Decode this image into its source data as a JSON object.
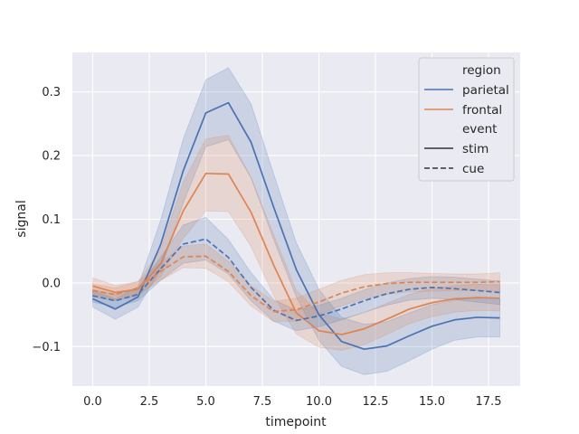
{
  "chart_data": {
    "type": "line",
    "title": "",
    "xlabel": "timepoint",
    "ylabel": "signal",
    "xlim": [
      -0.9,
      18.9
    ],
    "ylim": [
      -0.162,
      0.362
    ],
    "grid": true,
    "legend_placement": "top-right",
    "x_ticks": [
      {
        "value": 0,
        "label": "0.0"
      },
      {
        "value": 2.5,
        "label": "2.5"
      },
      {
        "value": 5,
        "label": "5.0"
      },
      {
        "value": 7.5,
        "label": "7.5"
      },
      {
        "value": 10,
        "label": "10.0"
      },
      {
        "value": 12.5,
        "label": "12.5"
      },
      {
        "value": 15,
        "label": "15.0"
      },
      {
        "value": 17.5,
        "label": "17.5"
      }
    ],
    "y_ticks": [
      {
        "value": -0.1,
        "label": "−0.1"
      },
      {
        "value": 0.0,
        "label": "0.0"
      },
      {
        "value": 0.1,
        "label": "0.1"
      },
      {
        "value": 0.2,
        "label": "0.2"
      },
      {
        "value": 0.3,
        "label": "0.3"
      }
    ],
    "x": [
      0,
      1,
      2,
      3,
      4,
      5,
      6,
      7,
      8,
      9,
      10,
      11,
      12,
      13,
      14,
      15,
      16,
      17,
      18
    ],
    "series": [
      {
        "region": "parietal",
        "event": "stim",
        "color": "#4c72b0",
        "dash": "solid",
        "values": [
          -0.025,
          -0.041,
          -0.022,
          0.06,
          0.176,
          0.267,
          0.283,
          0.221,
          0.119,
          0.021,
          -0.05,
          -0.092,
          -0.104,
          -0.099,
          -0.083,
          -0.068,
          -0.058,
          -0.054,
          -0.055
        ],
        "ci_low": [
          -0.038,
          -0.057,
          -0.038,
          0.021,
          0.125,
          0.214,
          0.225,
          0.165,
          0.068,
          -0.022,
          -0.09,
          -0.131,
          -0.144,
          -0.139,
          -0.122,
          -0.104,
          -0.09,
          -0.085,
          -0.085
        ],
        "ci_high": [
          -0.012,
          -0.025,
          -0.006,
          0.098,
          0.226,
          0.319,
          0.338,
          0.281,
          0.171,
          0.063,
          -0.01,
          -0.054,
          -0.065,
          -0.061,
          -0.047,
          -0.034,
          -0.027,
          -0.023,
          -0.025
        ]
      },
      {
        "region": "frontal",
        "event": "stim",
        "color": "#dd8452",
        "dash": "solid",
        "values": [
          -0.005,
          -0.015,
          -0.01,
          0.03,
          0.113,
          0.172,
          0.171,
          0.111,
          0.028,
          -0.047,
          -0.075,
          -0.081,
          -0.072,
          -0.057,
          -0.041,
          -0.031,
          -0.025,
          -0.023,
          -0.024
        ],
        "ci_low": [
          -0.017,
          -0.026,
          -0.022,
          0.01,
          0.07,
          0.113,
          0.112,
          0.057,
          -0.02,
          -0.08,
          -0.101,
          -0.106,
          -0.097,
          -0.081,
          -0.064,
          -0.053,
          -0.046,
          -0.043,
          -0.044
        ],
        "ci_high": [
          0.008,
          -0.004,
          0.002,
          0.052,
          0.158,
          0.226,
          0.232,
          0.166,
          0.076,
          -0.012,
          -0.047,
          -0.057,
          -0.047,
          -0.032,
          -0.018,
          -0.009,
          -0.004,
          -0.002,
          -0.003
        ]
      },
      {
        "region": "parietal",
        "event": "cue",
        "color": "#4c72b0",
        "dash": "dashed",
        "values": [
          -0.02,
          -0.028,
          -0.018,
          0.022,
          0.061,
          0.069,
          0.04,
          -0.007,
          -0.043,
          -0.059,
          -0.052,
          -0.041,
          -0.028,
          -0.017,
          -0.01,
          -0.007,
          -0.009,
          -0.012,
          -0.015
        ],
        "ci_low": [
          -0.03,
          -0.038,
          -0.028,
          0.004,
          0.031,
          0.036,
          0.014,
          -0.028,
          -0.06,
          -0.075,
          -0.069,
          -0.058,
          -0.046,
          -0.035,
          -0.027,
          -0.024,
          -0.026,
          -0.03,
          -0.034
        ],
        "ci_high": [
          -0.01,
          -0.018,
          -0.008,
          0.04,
          0.091,
          0.103,
          0.068,
          0.016,
          -0.026,
          -0.043,
          -0.035,
          -0.024,
          -0.011,
          0.0,
          0.007,
          0.01,
          0.009,
          0.006,
          0.003
        ]
      },
      {
        "region": "frontal",
        "event": "cue",
        "color": "#dd8452",
        "dash": "dashed",
        "values": [
          -0.012,
          -0.018,
          -0.008,
          0.018,
          0.041,
          0.042,
          0.018,
          -0.02,
          -0.045,
          -0.042,
          -0.03,
          -0.016,
          -0.006,
          -0.001,
          0.001,
          0.001,
          0.001,
          0.001,
          0.002
        ],
        "ci_low": [
          -0.022,
          -0.028,
          -0.018,
          0.004,
          0.024,
          0.023,
          0.002,
          -0.036,
          -0.061,
          -0.06,
          -0.05,
          -0.036,
          -0.025,
          -0.018,
          -0.014,
          -0.013,
          -0.012,
          -0.012,
          -0.012
        ],
        "ci_high": [
          -0.002,
          -0.008,
          0.002,
          0.032,
          0.058,
          0.061,
          0.034,
          -0.004,
          -0.029,
          -0.024,
          -0.01,
          0.004,
          0.013,
          0.016,
          0.016,
          0.015,
          0.014,
          0.014,
          0.016
        ]
      }
    ],
    "legend": {
      "hue_title": "region",
      "style_title": "event",
      "hue_entries": [
        {
          "label": "parietal",
          "color": "#4c72b0"
        },
        {
          "label": "frontal",
          "color": "#dd8452"
        }
      ],
      "style_entries": [
        {
          "label": "stim",
          "dash": "solid"
        },
        {
          "label": "cue",
          "dash": "dashed"
        }
      ]
    },
    "colors": {
      "plot_background": "#eaeaf2",
      "grid": "#ffffff",
      "text": "#262626",
      "legend_line": "#333333"
    }
  }
}
